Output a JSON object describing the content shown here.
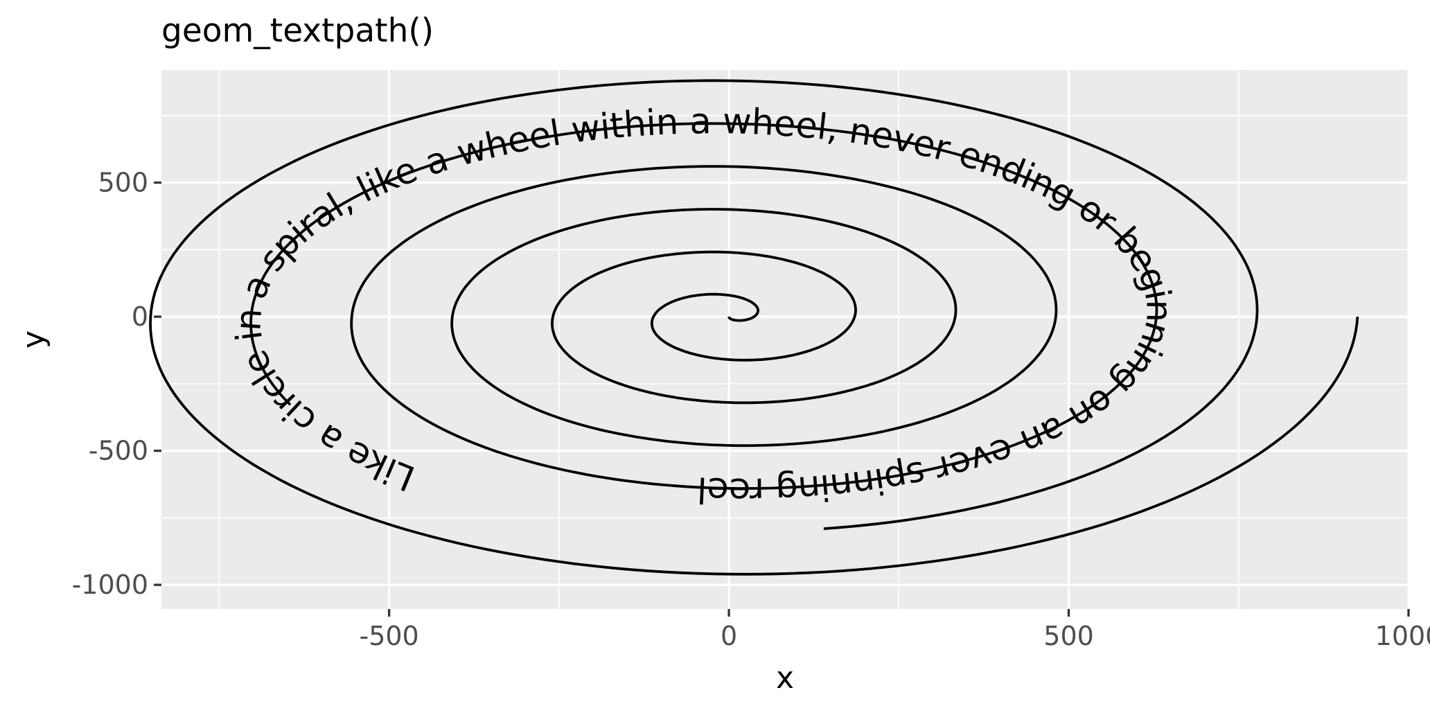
{
  "chart_data": {
    "type": "line",
    "title": "geom_textpath()",
    "xlabel": "x",
    "ylabel": "y",
    "xlim": [
      -835,
      1000
    ],
    "ylim": [
      -1090,
      920
    ],
    "x_ticks": [
      -500,
      0,
      500,
      1000
    ],
    "x_tick_labels": [
      "-500",
      "0",
      "500",
      "1000"
    ],
    "y_ticks": [
      -1000,
      -500,
      0,
      500
    ],
    "y_tick_labels": [
      "-1000",
      "-500",
      "0",
      "500"
    ],
    "x_minor": [
      -750,
      -250,
      250,
      750
    ],
    "y_minor": [
      -750,
      -250,
      250,
      750
    ],
    "grid": true,
    "panel_background": "#ebebeb",
    "line_color": "#000000",
    "spiral": {
      "t_start": 0,
      "t_end": 6.25,
      "radius_y_max": 1000,
      "radius_x_max": 925
    },
    "label": "Like a circle in a spiral, like a wheel within a wheel, never ending or beginning on an ever spinning reel"
  }
}
